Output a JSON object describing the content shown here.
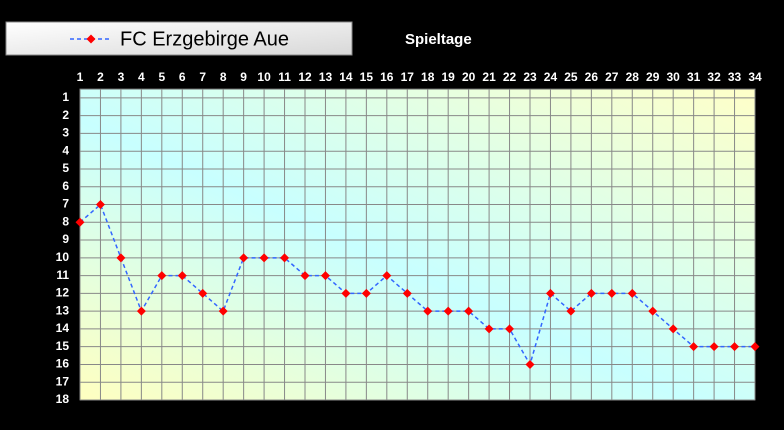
{
  "chart_data": {
    "type": "line",
    "title": "Spieltage",
    "x": [
      1,
      2,
      3,
      4,
      5,
      6,
      7,
      8,
      9,
      10,
      11,
      12,
      13,
      14,
      15,
      16,
      17,
      18,
      19,
      20,
      21,
      22,
      23,
      24,
      25,
      26,
      27,
      28,
      29,
      30,
      31,
      32,
      33,
      34
    ],
    "series": [
      {
        "name": "FC Erzgebirge Aue",
        "color": "#3366ff",
        "marker_color": "#ff0000",
        "values": [
          8,
          7,
          10,
          13,
          11,
          11,
          12,
          13,
          10,
          10,
          10,
          11,
          11,
          12,
          12,
          11,
          12,
          13,
          13,
          13,
          14,
          14,
          16,
          12,
          13,
          12,
          12,
          12,
          13,
          14,
          15,
          15,
          15,
          15
        ]
      }
    ],
    "xlim": [
      1,
      34
    ],
    "xticks": [
      1,
      2,
      3,
      4,
      5,
      6,
      7,
      8,
      9,
      10,
      11,
      12,
      13,
      14,
      15,
      16,
      17,
      18,
      19,
      20,
      21,
      22,
      23,
      24,
      25,
      26,
      27,
      28,
      29,
      30,
      31,
      32,
      33,
      34
    ],
    "ylim": [
      18,
      0.5
    ],
    "yticks": [
      1,
      2,
      3,
      4,
      5,
      6,
      7,
      8,
      9,
      10,
      11,
      12,
      13,
      14,
      15,
      16,
      17,
      18
    ],
    "grid": true,
    "legend": "top-left"
  }
}
